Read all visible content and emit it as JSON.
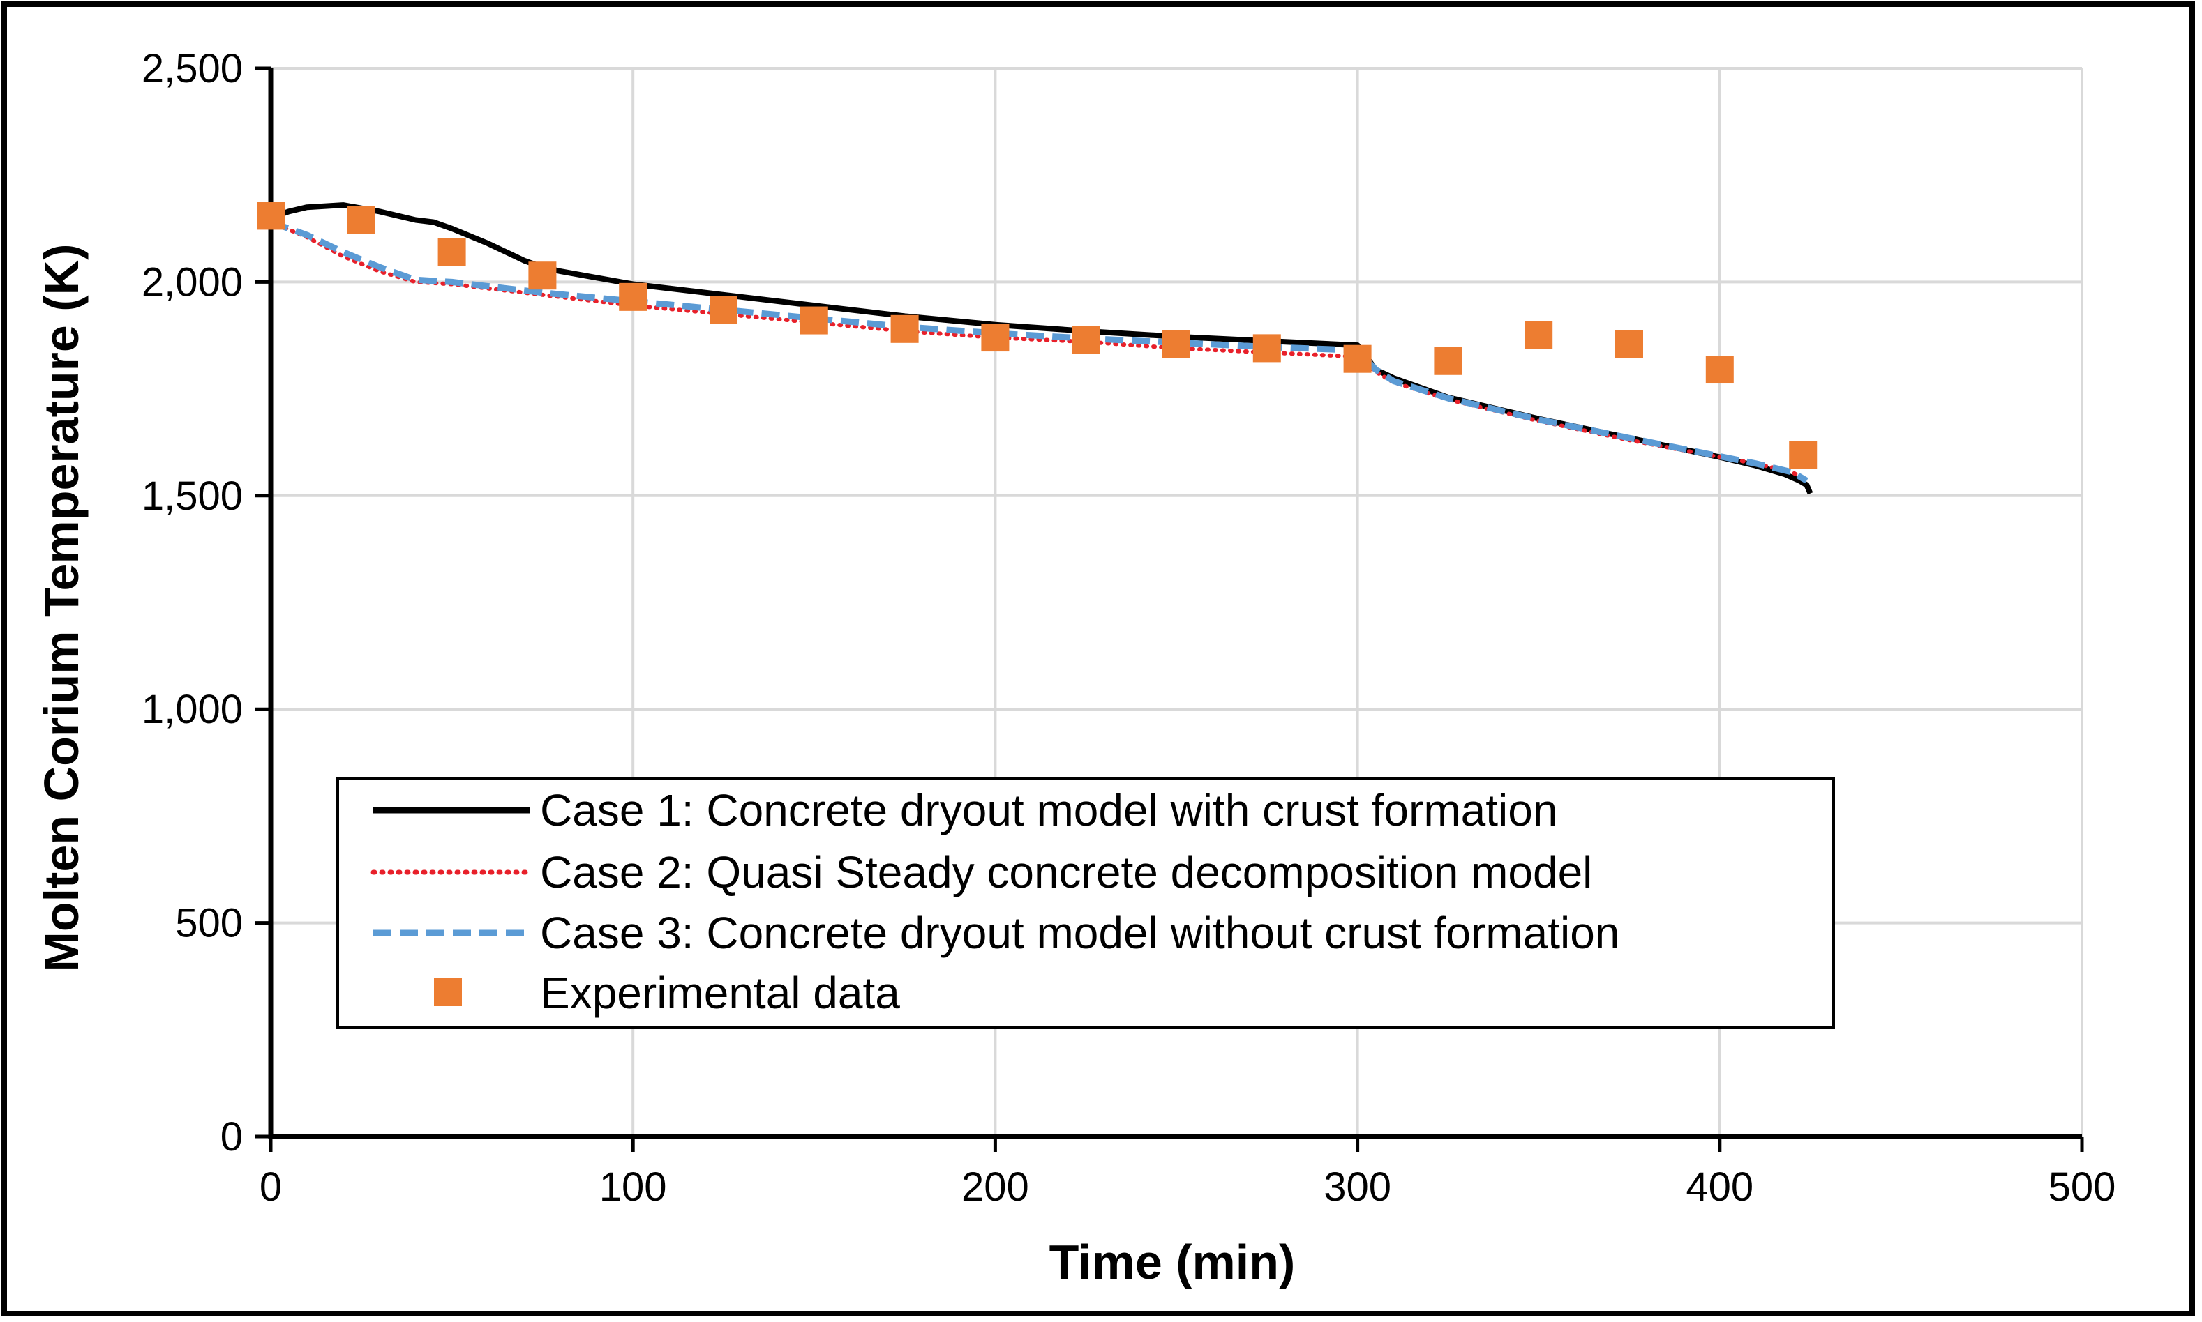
{
  "chart_data": {
    "type": "line",
    "title": "",
    "xlabel": "Time (min)",
    "ylabel": "Molten Corium Temperature (K)",
    "xlim": [
      0,
      500
    ],
    "ylim": [
      0,
      2500
    ],
    "x_ticks": [
      0,
      100,
      200,
      300,
      400,
      500
    ],
    "x_tick_labels": [
      "0",
      "100",
      "200",
      "300",
      "400",
      "500"
    ],
    "y_ticks": [
      0,
      500,
      1000,
      1500,
      2000,
      2500
    ],
    "y_tick_labels": [
      "0",
      "500",
      "1,000",
      "1,500",
      "2,000",
      "2,500"
    ],
    "grid": true,
    "legend_position": "lower-center",
    "series": [
      {
        "name": "Case 1: Concrete dryout model with crust formation",
        "style": "solid",
        "color": "#000000",
        "x": [
          0,
          5,
          10,
          20,
          30,
          40,
          45,
          50,
          60,
          70,
          75,
          80,
          90,
          100,
          125,
          150,
          175,
          200,
          225,
          250,
          275,
          300,
          302,
          305,
          310,
          325,
          350,
          375,
          400,
          410,
          418,
          422,
          424,
          425
        ],
        "y": [
          2150,
          2165,
          2175,
          2180,
          2165,
          2145,
          2140,
          2125,
          2090,
          2050,
          2035,
          2025,
          2010,
          1995,
          1970,
          1945,
          1920,
          1900,
          1885,
          1872,
          1862,
          1852,
          1830,
          1795,
          1775,
          1730,
          1680,
          1635,
          1590,
          1570,
          1550,
          1535,
          1525,
          1505
        ]
      },
      {
        "name": "Case 2: Quasi Steady concrete decomposition model",
        "style": "dotted",
        "color": "#e8202a",
        "x": [
          0,
          10,
          20,
          30,
          40,
          50,
          75,
          100,
          125,
          150,
          175,
          200,
          225,
          250,
          275,
          300,
          305,
          310,
          325,
          350,
          375,
          400,
          410,
          420,
          424
        ],
        "y": [
          2140,
          2105,
          2060,
          2025,
          2000,
          1995,
          1970,
          1945,
          1925,
          1905,
          1885,
          1870,
          1860,
          1845,
          1835,
          1825,
          1790,
          1765,
          1725,
          1675,
          1630,
          1590,
          1575,
          1555,
          1535
        ]
      },
      {
        "name": "Case 3: Concrete dryout model without crust formation",
        "style": "dashed",
        "color": "#5b9bd5",
        "x": [
          0,
          10,
          20,
          30,
          40,
          50,
          75,
          100,
          125,
          150,
          175,
          200,
          225,
          250,
          275,
          300,
          305,
          310,
          325,
          350,
          375,
          400,
          410,
          420,
          424
        ],
        "y": [
          2140,
          2110,
          2070,
          2035,
          2005,
          2000,
          1975,
          1955,
          1935,
          1915,
          1895,
          1880,
          1868,
          1858,
          1848,
          1840,
          1795,
          1768,
          1728,
          1678,
          1635,
          1592,
          1575,
          1555,
          1535
        ]
      },
      {
        "name": "Experimental data",
        "style": "marker-square",
        "color": "#ed7d31",
        "x": [
          0,
          25,
          50,
          75,
          100,
          125,
          150,
          175,
          200,
          225,
          250,
          275,
          300,
          325,
          350,
          375,
          400,
          423
        ],
        "y": [
          2155,
          2145,
          2070,
          2015,
          1965,
          1935,
          1910,
          1890,
          1870,
          1865,
          1855,
          1845,
          1820,
          1815,
          1875,
          1855,
          1795,
          1595
        ]
      }
    ]
  }
}
